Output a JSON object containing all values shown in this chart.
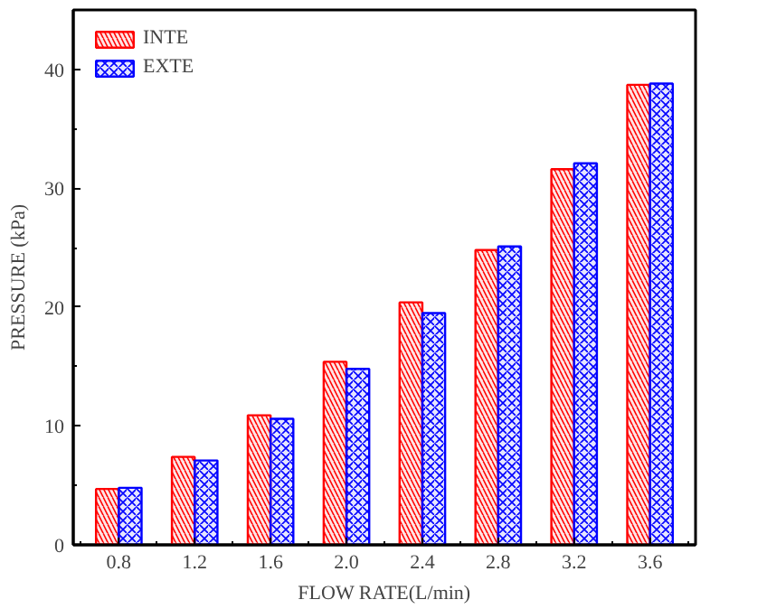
{
  "chart_data": {
    "type": "bar",
    "xlabel": "FLOW RATE(L/min)",
    "ylabel": "PRESSURE (kPa)",
    "categories": [
      "0.8",
      "1.2",
      "1.6",
      "2.0",
      "2.4",
      "2.8",
      "3.2",
      "3.6"
    ],
    "series": [
      {
        "name": "INTE",
        "color": "#ff0000",
        "values": [
          4.7,
          7.4,
          10.9,
          15.4,
          20.4,
          24.8,
          31.6,
          38.7
        ]
      },
      {
        "name": "EXTE",
        "color": "#0000ff",
        "values": [
          4.8,
          7.1,
          10.6,
          14.8,
          19.5,
          25.1,
          32.1,
          38.8
        ]
      }
    ],
    "ylim": [
      0,
      45
    ],
    "yticks": [
      0,
      10,
      20,
      30,
      40
    ],
    "grid": false,
    "legend": "top left"
  }
}
